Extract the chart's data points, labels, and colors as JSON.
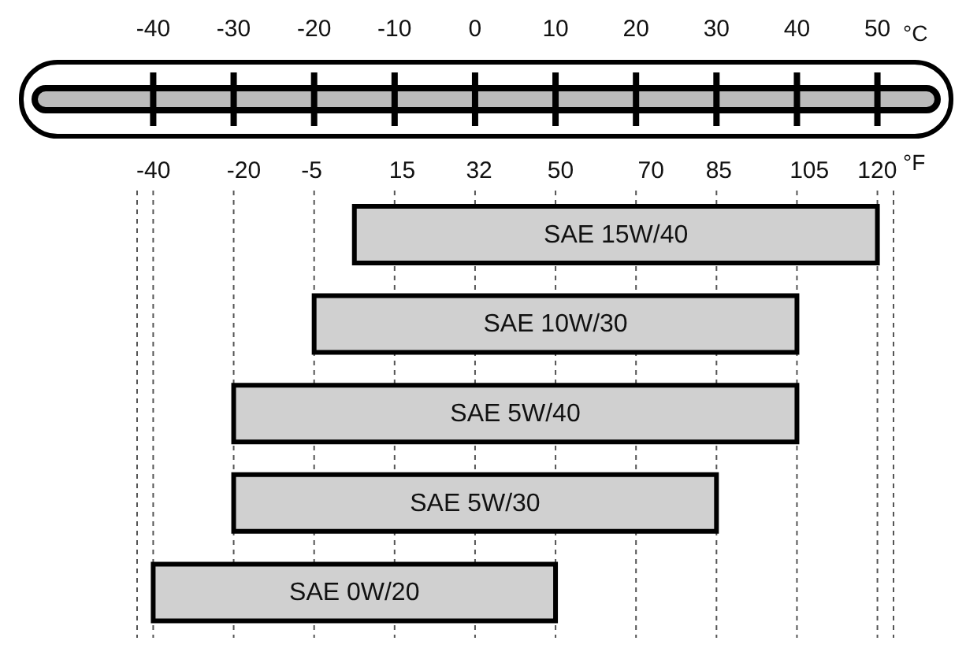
{
  "chart_data": {
    "type": "bar",
    "orientation": "horizontal",
    "categories": [
      "SAE 15W/40",
      "SAE 10W/30",
      "SAE 5W/40",
      "SAE 5W/30",
      "SAE 0W/20"
    ],
    "base": [
      -15,
      -20,
      -30,
      -30,
      -40
    ],
    "values": [
      65,
      60,
      70,
      60,
      50
    ],
    "color": "#d0d0d0",
    "xlabel": "°C",
    "x2label": "°F",
    "xlim": [
      -42,
      52
    ],
    "xticks": [
      -40,
      -30,
      -20,
      -10,
      0,
      10,
      20,
      30,
      40,
      50
    ],
    "x2lim": [
      -43.6,
      123.6
    ],
    "x2ticks": [
      -40,
      -20,
      -5,
      15,
      32,
      50,
      70,
      85,
      105,
      120
    ],
    "grid": "x",
    "legend": false
  }
}
